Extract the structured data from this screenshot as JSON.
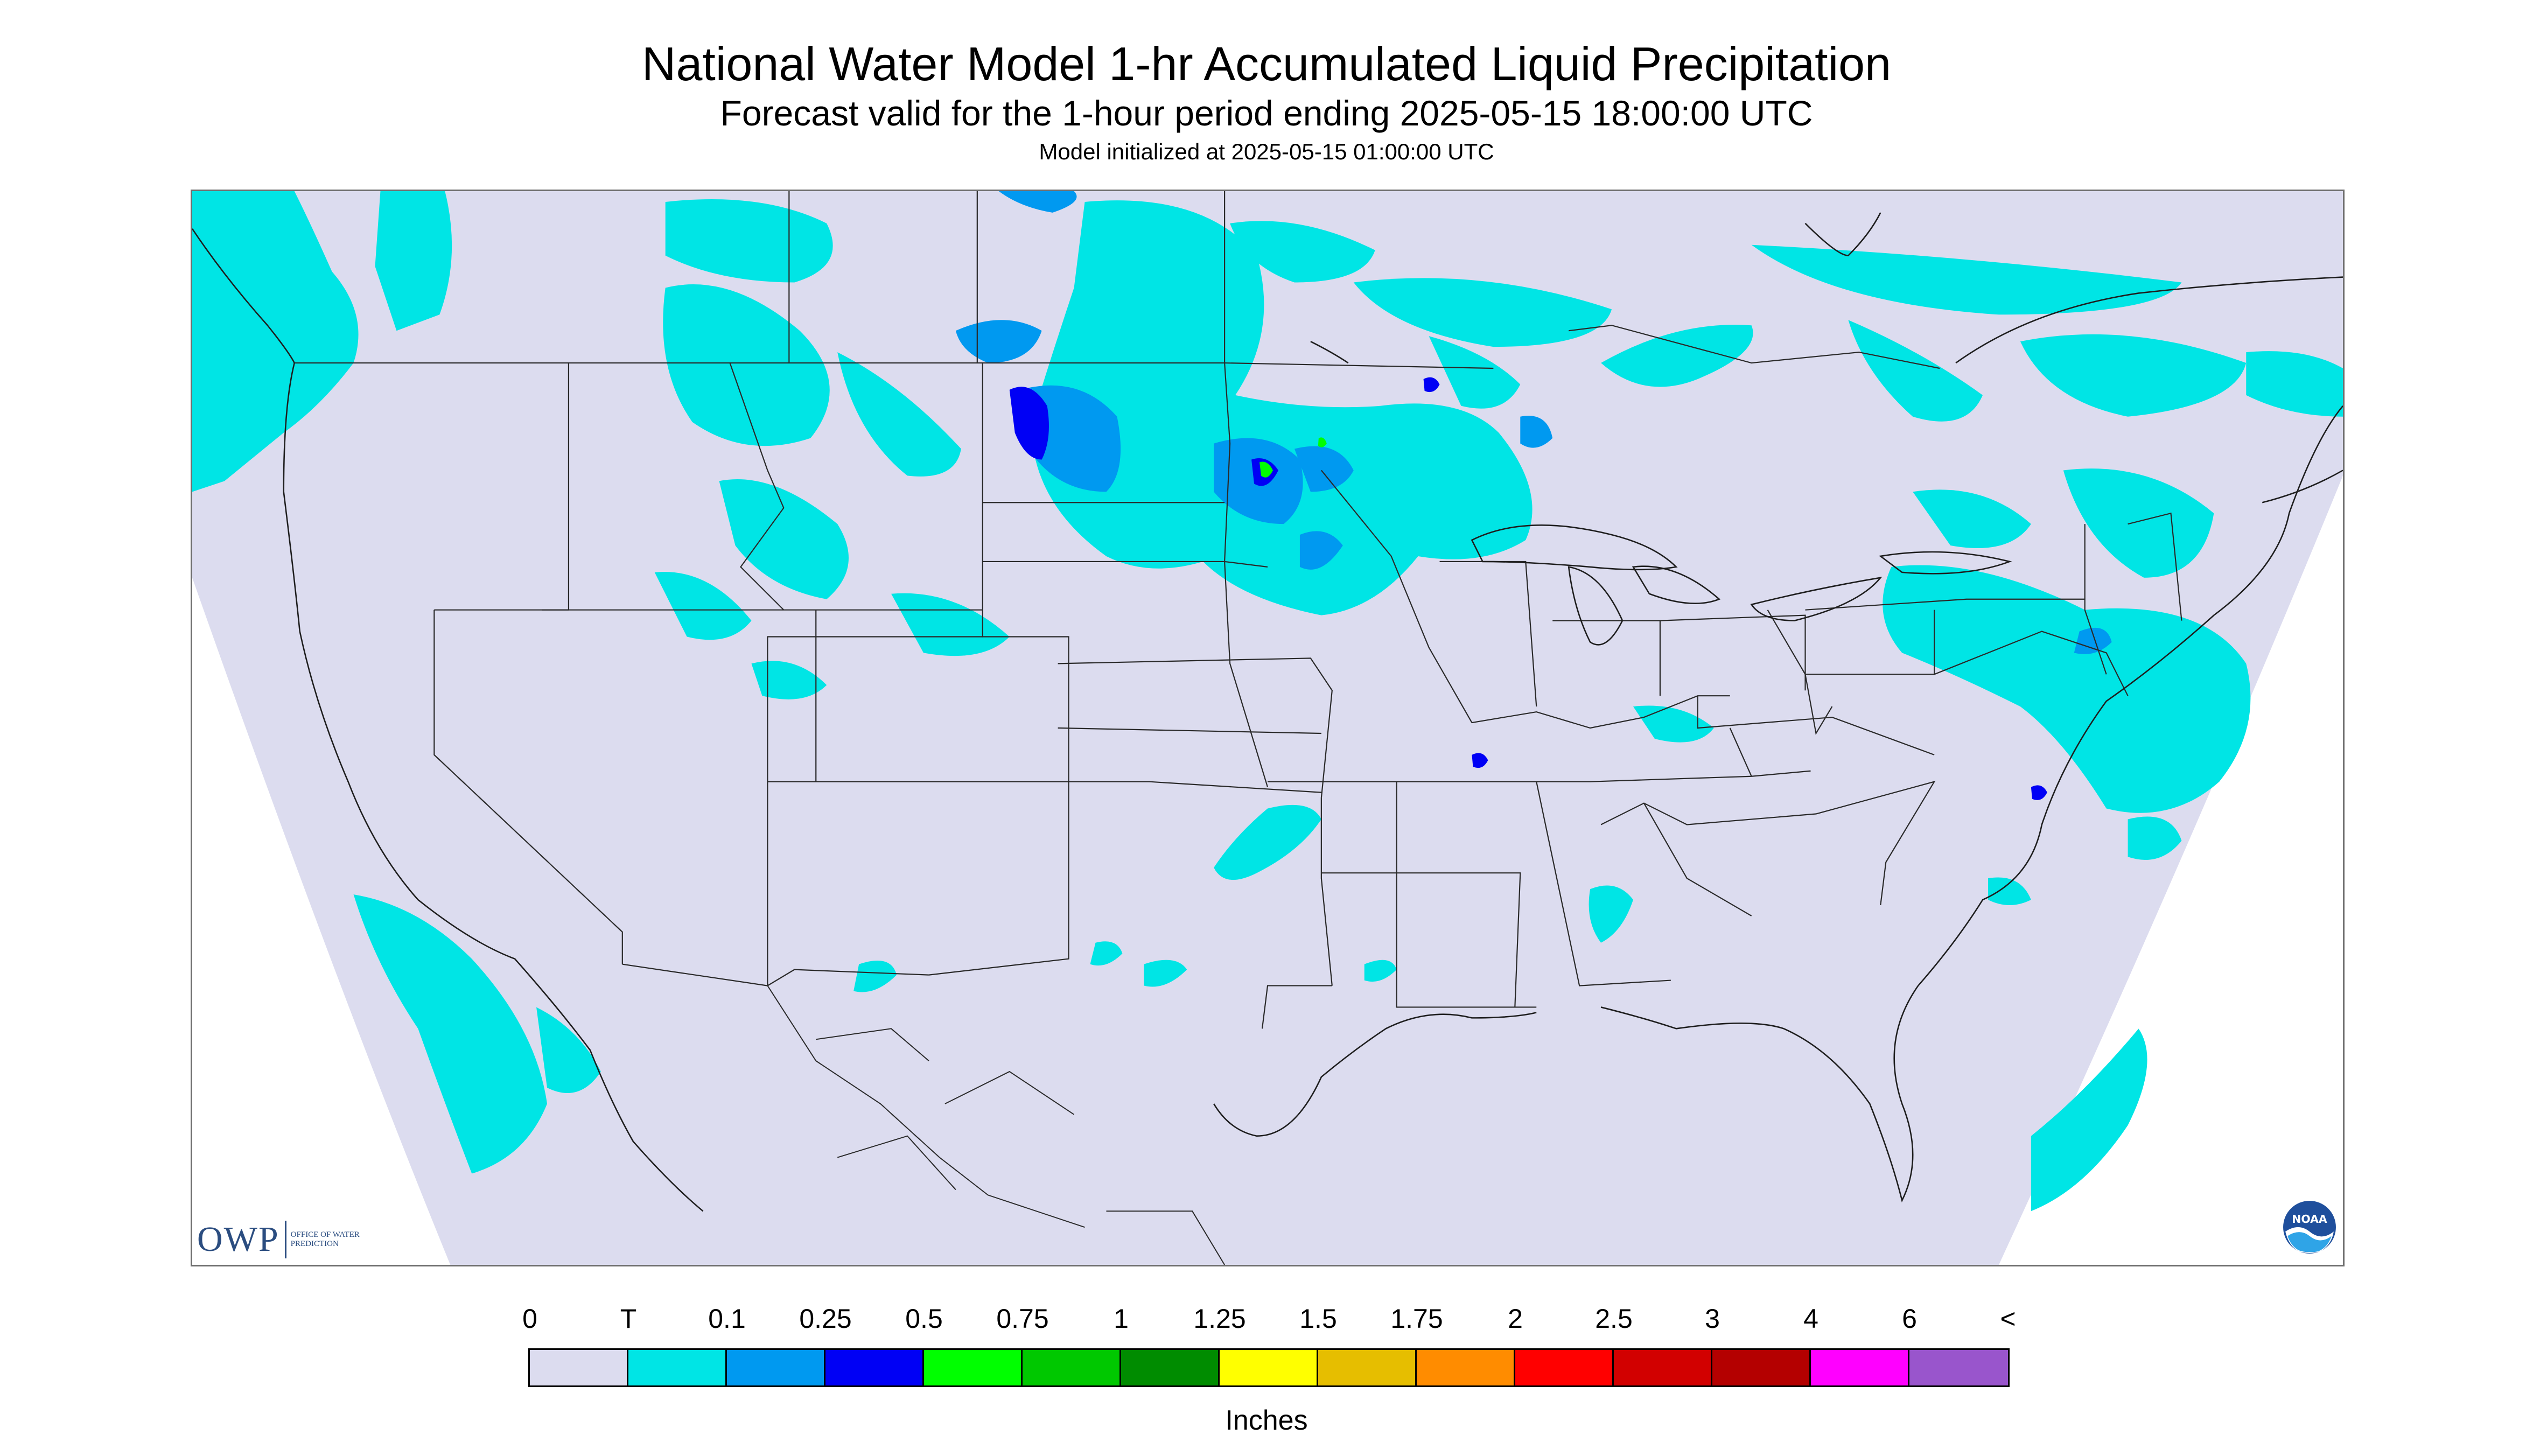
{
  "header": {
    "title": "National Water Model 1-hr Accumulated Liquid Precipitation",
    "subtitle": "Forecast valid for the 1-hour period ending 2025-05-15 18:00:00 UTC",
    "init": "Model initialized at 2025-05-15 01:00:00 UTC"
  },
  "map": {
    "land_color": "#dcdcef",
    "background_color": "#ffffff",
    "boundary_color": "#2a2a2a",
    "region": "contiguous United States"
  },
  "logos": {
    "owp": {
      "mark": "OWP",
      "words": "Office of Water Prediction",
      "icon": "owp-logo"
    },
    "noaa": {
      "mark": "NOAA",
      "icon": "noaa-logo"
    }
  },
  "legend": {
    "units": "Inches",
    "tick_labels": [
      "0",
      "T",
      "0.1",
      "0.25",
      "0.5",
      "0.75",
      "1",
      "1.25",
      "1.5",
      "1.75",
      "2",
      "2.5",
      "3",
      "4",
      "6",
      "<"
    ],
    "colors": [
      "#dcdcef",
      "#00e5e5",
      "#0099f0",
      "#0000f5",
      "#00ff00",
      "#00c800",
      "#008c00",
      "#ffff00",
      "#e6be00",
      "#ff8c00",
      "#ff0000",
      "#d20000",
      "#b40000",
      "#ff00ff",
      "#9955cc"
    ]
  }
}
